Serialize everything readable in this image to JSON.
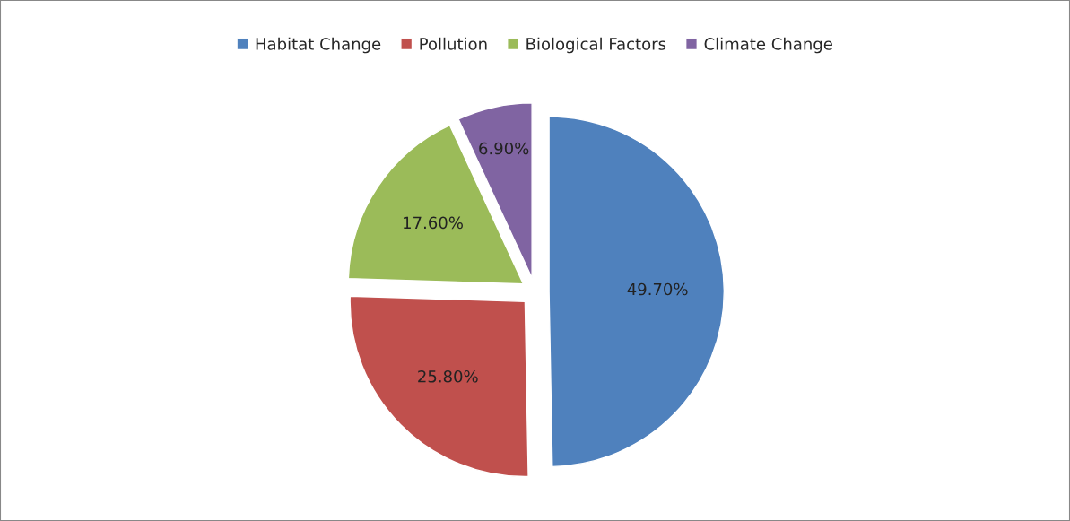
{
  "chart_data": {
    "type": "pie",
    "categories": [
      "Habitat Change",
      "Pollution",
      "Biological Factors",
      "Climate Change"
    ],
    "values": [
      49.7,
      25.8,
      17.6,
      6.9
    ],
    "colors": [
      "#4f81bd",
      "#c0504d",
      "#9bbb59",
      "#8064a2"
    ],
    "value_labels": [
      "49.70%",
      "25.80%",
      "17.60%",
      "6.90%"
    ],
    "legend": "top"
  }
}
